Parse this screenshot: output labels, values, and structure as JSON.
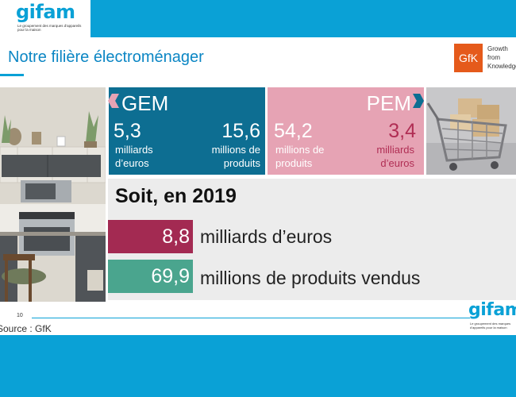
{
  "header": {
    "logo_text": "gifam",
    "logo_tagline": "Le groupement des marques d'appareils pour la maison",
    "title": "Notre filière électroménager"
  },
  "gfk": {
    "box_text": "GfK",
    "line1": "Growth",
    "line2": "from",
    "line3": "Knowledge"
  },
  "gem": {
    "title": "GEM",
    "value1": "5,3",
    "unit1_line1": "milliards",
    "unit1_line2": "d’euros",
    "value2": "15,6",
    "unit2_line1": "millions de",
    "unit2_line2": "produits"
  },
  "pem": {
    "title": "PEM",
    "value1": "54,2",
    "unit1_line1": "millions de",
    "unit1_line2": "produits",
    "value2": "3,4",
    "unit2_line1": "milliards",
    "unit2_line2": "d’euros"
  },
  "summary": {
    "title": "Soit, en 2019",
    "value1": "8,8",
    "label1": "milliards d’euros",
    "value2": "69,9",
    "label2": "millions de produits vendus"
  },
  "footer": {
    "page_number": "10",
    "source": "Source : GfK",
    "logo_text": "gifam",
    "logo_tagline": "Le groupement des marques d'appareils pour la maison"
  },
  "colors": {
    "brand_blue": "#0aa1d6",
    "gem_panel": "#0d6e92",
    "pem_panel": "#e6a3b4",
    "pem_accent": "#b02e54",
    "value_red": "#a32a52",
    "value_green": "#4aa58e",
    "gfk_orange": "#e55a1b"
  },
  "images": {
    "left": "kitchen-photo",
    "right": "shopping-cart-photo"
  }
}
